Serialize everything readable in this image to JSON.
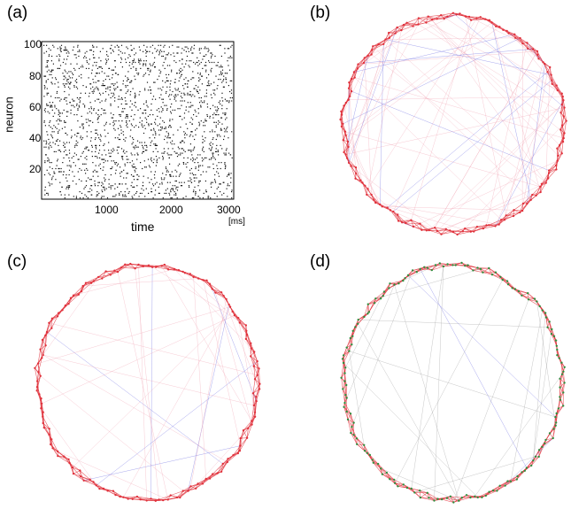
{
  "panels": {
    "a": "(a)",
    "b": "(b)",
    "c": "(c)",
    "d": "(d)"
  },
  "raster": {
    "ylabel": "neuron",
    "xlabel": "time",
    "unit": "[ms]",
    "xticks": [
      "1000",
      "2000",
      "3000"
    ],
    "yticks": [
      "100",
      "80",
      "60",
      "40",
      "20"
    ]
  },
  "colors": {
    "spike": "#111111",
    "edge_red": "#e0303a",
    "edge_pink": "#f0a0b0",
    "edge_blue": "#6060e0",
    "edge_gray": "#9a9a9a",
    "node_green": "#2f8f3f"
  },
  "chart_data": [
    {
      "type": "scatter",
      "panel": "(a)",
      "xlabel": "time",
      "ylabel": "neuron",
      "xlim": [
        0,
        3000
      ],
      "ylim": [
        0,
        100
      ],
      "x_ticks": [
        1000,
        2000,
        3000
      ],
      "y_ticks": [
        20,
        40,
        60,
        80,
        100
      ],
      "x_unit": "[ms]"
    }
  ]
}
